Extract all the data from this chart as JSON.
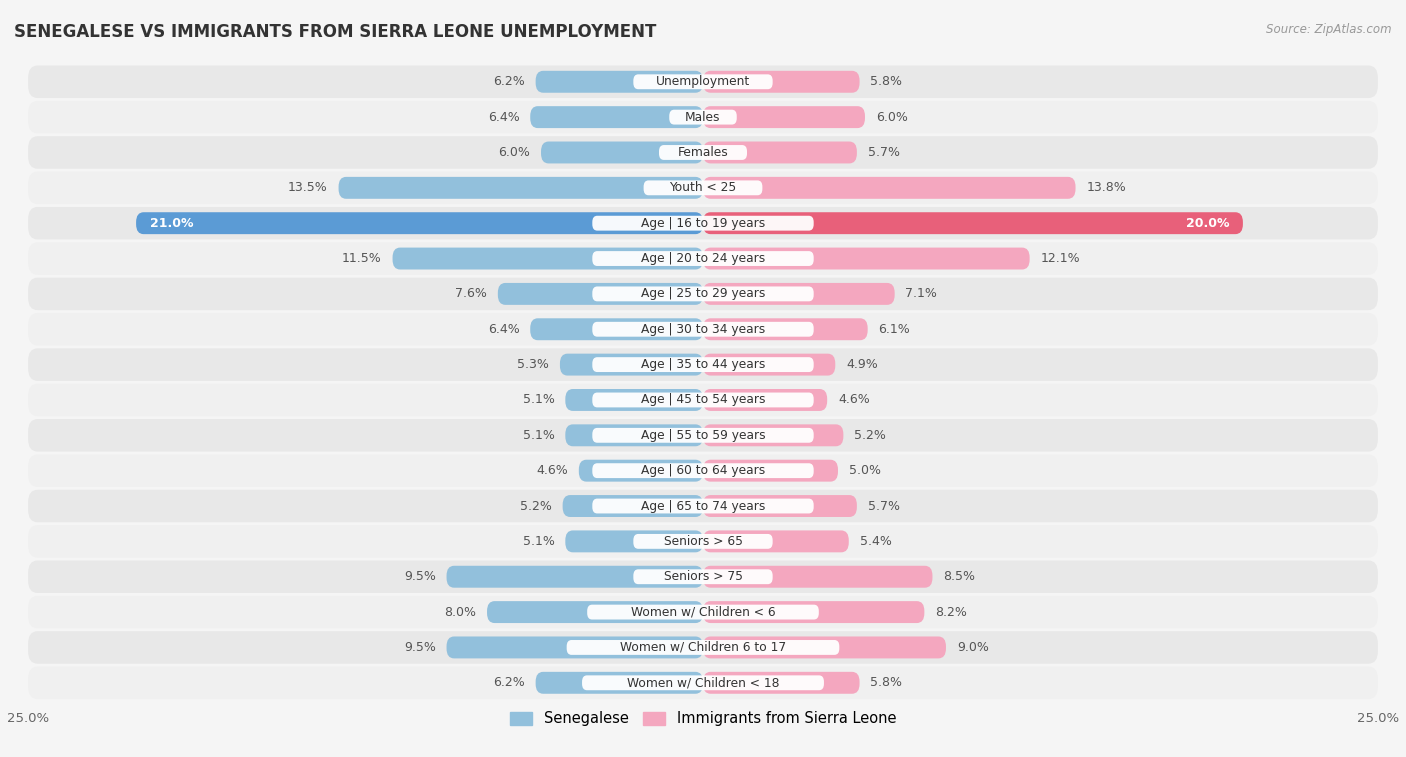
{
  "title": "SENEGALESE VS IMMIGRANTS FROM SIERRA LEONE UNEMPLOYMENT",
  "source": "Source: ZipAtlas.com",
  "categories": [
    "Unemployment",
    "Males",
    "Females",
    "Youth < 25",
    "Age | 16 to 19 years",
    "Age | 20 to 24 years",
    "Age | 25 to 29 years",
    "Age | 30 to 34 years",
    "Age | 35 to 44 years",
    "Age | 45 to 54 years",
    "Age | 55 to 59 years",
    "Age | 60 to 64 years",
    "Age | 65 to 74 years",
    "Seniors > 65",
    "Seniors > 75",
    "Women w/ Children < 6",
    "Women w/ Children 6 to 17",
    "Women w/ Children < 18"
  ],
  "senegalese": [
    6.2,
    6.4,
    6.0,
    13.5,
    21.0,
    11.5,
    7.6,
    6.4,
    5.3,
    5.1,
    5.1,
    4.6,
    5.2,
    5.1,
    9.5,
    8.0,
    9.5,
    6.2
  ],
  "sierra_leone": [
    5.8,
    6.0,
    5.7,
    13.8,
    20.0,
    12.1,
    7.1,
    6.1,
    4.9,
    4.6,
    5.2,
    5.0,
    5.7,
    5.4,
    8.5,
    8.2,
    9.0,
    5.8
  ],
  "senegalese_color": "#92c0dc",
  "sierra_leone_color": "#f4a7bf",
  "highlight_senegalese_color": "#5b9bd5",
  "highlight_sierra_leone_color": "#e8607a",
  "row_light": "#f0f0f0",
  "row_dark": "#e2e2e2",
  "bg_color": "#f5f5f5",
  "xlim": 25.0,
  "legend_senegalese": "Senegalese",
  "legend_sierra_leone": "Immigrants from Sierra Leone"
}
